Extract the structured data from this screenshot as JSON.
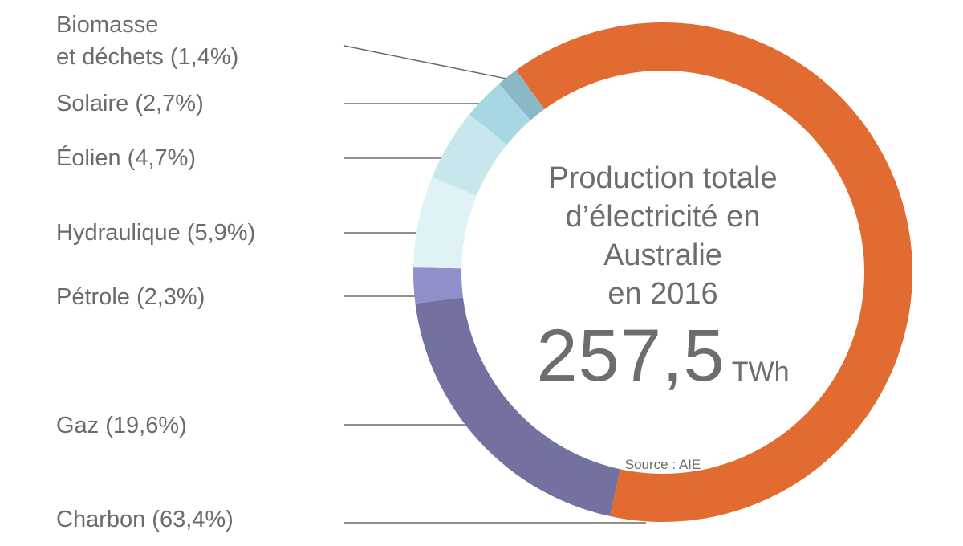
{
  "chart_data": {
    "type": "pie",
    "variant": "donut",
    "title": "Production totale\nd’électricité en\nAustralie\nen 2016",
    "total_value": "257,5",
    "total_unit": "TWh",
    "source": "Source : AIE",
    "start_angle_deg": -36,
    "legend_position": "left",
    "segments": [
      {
        "id": "charbon",
        "label": "Charbon",
        "value_pct": 63.4,
        "display": "Charbon (63,4%)",
        "color": "#E16B30"
      },
      {
        "id": "gaz",
        "label": "Gaz",
        "value_pct": 19.6,
        "display": "Gaz (19,6%)",
        "color": "#72719F"
      },
      {
        "id": "petrole",
        "label": "Pétrole",
        "value_pct": 2.3,
        "display": "Pétrole (2,3%)",
        "color": "#908FC9"
      },
      {
        "id": "hydraulique",
        "label": "Hydraulique",
        "value_pct": 5.9,
        "display": "Hydraulique (5,9%)",
        "color": "#DFF2F5"
      },
      {
        "id": "eolien",
        "label": "Éolien",
        "value_pct": 4.7,
        "display": "Éolien (4,7%)",
        "color": "#C8E7EC"
      },
      {
        "id": "solaire",
        "label": "Solaire",
        "value_pct": 2.7,
        "display": "Solaire (2,7%)",
        "color": "#A7D7E2"
      },
      {
        "id": "biomasse",
        "label": "Biomasse et déchets",
        "value_pct": 1.4,
        "display": "Biomasse\net déchets (1,4%)",
        "color": "#8AB8C6"
      }
    ]
  },
  "colors": {
    "text": "#6B6B6B",
    "leader_line": "#6A6A6A",
    "background": "#FFFFFF"
  }
}
